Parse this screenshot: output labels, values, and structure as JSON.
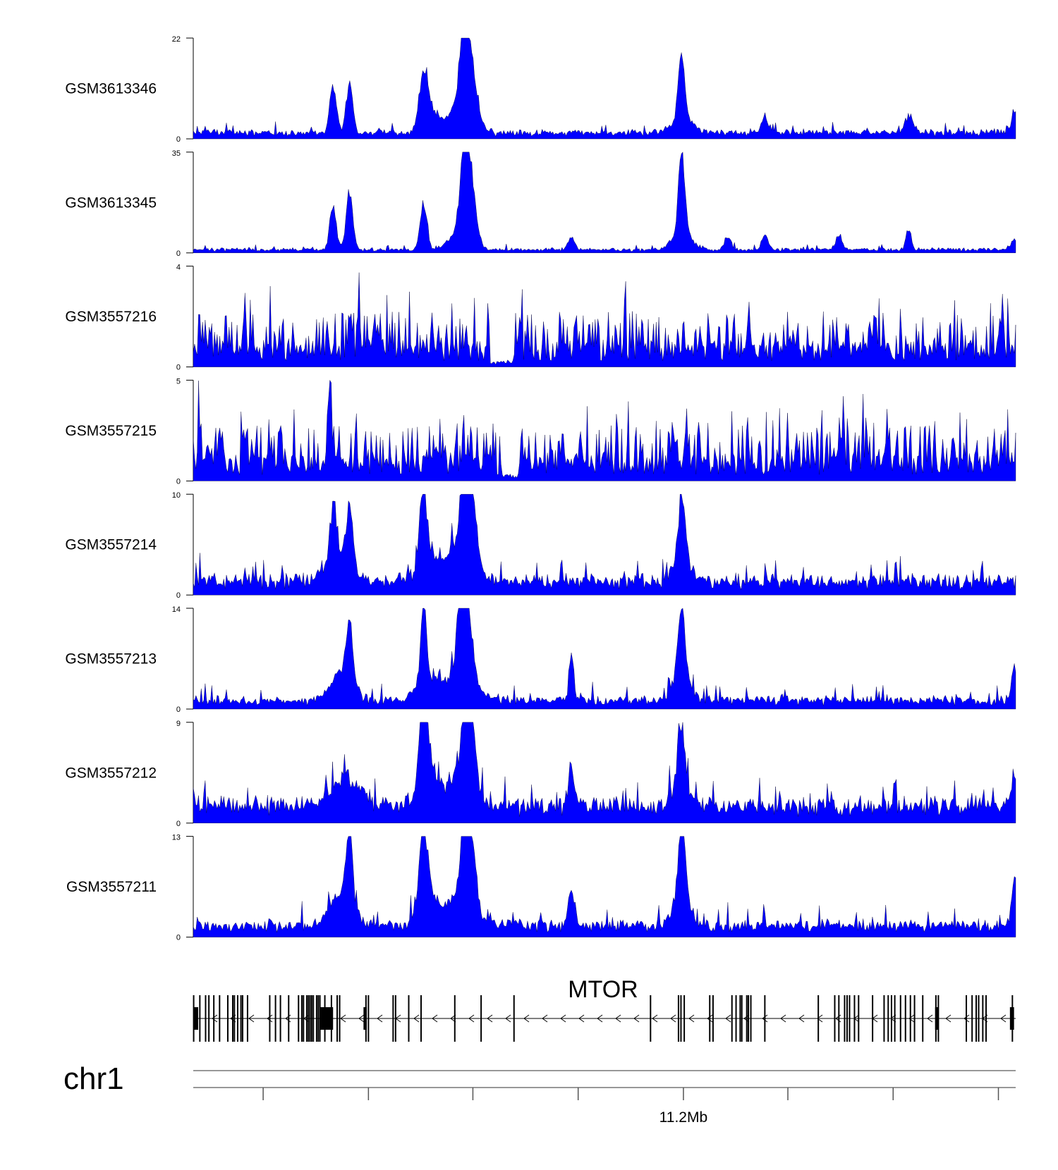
{
  "chart_data": {
    "type": "area",
    "color": "#0000ff",
    "tracks": [
      {
        "name": "GSM3613346",
        "ymax": 22,
        "ymin": 0,
        "baseline": 0.06,
        "noise": 0.05,
        "peaks": [
          [
            0.17,
            0.55,
            0.004
          ],
          [
            0.19,
            0.58,
            0.004
          ],
          [
            0.28,
            0.55,
            0.005
          ],
          [
            0.288,
            0.25,
            0.01
          ],
          [
            0.33,
            1.0,
            0.004
          ],
          [
            0.337,
            0.6,
            0.008
          ],
          [
            0.325,
            0.4,
            0.012
          ],
          [
            0.594,
            0.68,
            0.004
          ],
          [
            0.594,
            0.15,
            0.012
          ],
          [
            0.695,
            0.18,
            0.004
          ],
          [
            0.87,
            0.2,
            0.005
          ],
          [
            0.998,
            0.25,
            0.003
          ]
        ]
      },
      {
        "name": "GSM3613345",
        "ymax": 35,
        "ymin": 0,
        "baseline": 0.03,
        "noise": 0.03,
        "peaks": [
          [
            0.17,
            0.5,
            0.004
          ],
          [
            0.19,
            0.65,
            0.004
          ],
          [
            0.28,
            0.52,
            0.004
          ],
          [
            0.33,
            1.0,
            0.004
          ],
          [
            0.337,
            0.65,
            0.006
          ],
          [
            0.327,
            0.3,
            0.012
          ],
          [
            0.594,
            0.88,
            0.004
          ],
          [
            0.594,
            0.2,
            0.012
          ],
          [
            0.46,
            0.15,
            0.004
          ],
          [
            0.65,
            0.14,
            0.004
          ],
          [
            0.695,
            0.16,
            0.004
          ],
          [
            0.785,
            0.14,
            0.004
          ],
          [
            0.87,
            0.25,
            0.003
          ],
          [
            0.998,
            0.12,
            0.003
          ]
        ]
      },
      {
        "name": "GSM3557216",
        "ymax": 4,
        "ymin": 0,
        "baseline": 0.2,
        "noise": 0.45,
        "spiky": true,
        "gap": [
          0.36,
          0.39
        ],
        "spikeMax": 0.98,
        "peaks": []
      },
      {
        "name": "GSM3557215",
        "ymax": 5,
        "ymin": 0,
        "baseline": 0.2,
        "noise": 0.45,
        "spiky": true,
        "gap": [
          0.375,
          0.395
        ],
        "spikeMax": 1.0,
        "peaks": [
          [
            0.166,
            0.95,
            0.002
          ]
        ]
      },
      {
        "name": "GSM3557214",
        "ymax": 10,
        "ymin": 0,
        "baseline": 0.12,
        "noise": 0.14,
        "peaks": [
          [
            0.17,
            0.62,
            0.004
          ],
          [
            0.19,
            0.6,
            0.004
          ],
          [
            0.18,
            0.3,
            0.015
          ],
          [
            0.28,
            0.8,
            0.004
          ],
          [
            0.285,
            0.35,
            0.012
          ],
          [
            0.33,
            1.0,
            0.004
          ],
          [
            0.337,
            0.8,
            0.006
          ],
          [
            0.325,
            0.5,
            0.014
          ],
          [
            0.594,
            0.68,
            0.004
          ],
          [
            0.594,
            0.3,
            0.01
          ]
        ]
      },
      {
        "name": "GSM3557213",
        "ymax": 14,
        "ymin": 0,
        "baseline": 0.07,
        "noise": 0.1,
        "peaks": [
          [
            0.19,
            0.62,
            0.004
          ],
          [
            0.18,
            0.3,
            0.014
          ],
          [
            0.28,
            1.0,
            0.003
          ],
          [
            0.285,
            0.3,
            0.012
          ],
          [
            0.325,
            0.8,
            0.004
          ],
          [
            0.333,
            0.7,
            0.006
          ],
          [
            0.327,
            0.45,
            0.014
          ],
          [
            0.46,
            0.5,
            0.003
          ],
          [
            0.594,
            0.75,
            0.004
          ],
          [
            0.594,
            0.3,
            0.01
          ],
          [
            0.998,
            0.42,
            0.003
          ]
        ]
      },
      {
        "name": "GSM3557212",
        "ymax": 9,
        "ymin": 0,
        "baseline": 0.15,
        "noise": 0.17,
        "peaks": [
          [
            0.28,
            1.0,
            0.004
          ],
          [
            0.285,
            0.5,
            0.012
          ],
          [
            0.33,
            0.72,
            0.004
          ],
          [
            0.338,
            0.7,
            0.005
          ],
          [
            0.327,
            0.45,
            0.014
          ],
          [
            0.185,
            0.3,
            0.018
          ],
          [
            0.46,
            0.4,
            0.004
          ],
          [
            0.594,
            0.68,
            0.004
          ],
          [
            0.594,
            0.25,
            0.012
          ],
          [
            0.998,
            0.45,
            0.003
          ]
        ]
      },
      {
        "name": "GSM3557211",
        "ymax": 13,
        "ymin": 0,
        "baseline": 0.1,
        "noise": 0.12,
        "peaks": [
          [
            0.19,
            0.87,
            0.004
          ],
          [
            0.18,
            0.35,
            0.014
          ],
          [
            0.28,
            0.9,
            0.004
          ],
          [
            0.285,
            0.4,
            0.012
          ],
          [
            0.33,
            0.85,
            0.004
          ],
          [
            0.338,
            0.68,
            0.005
          ],
          [
            0.327,
            0.45,
            0.014
          ],
          [
            0.46,
            0.4,
            0.004
          ],
          [
            0.594,
            1.0,
            0.004
          ],
          [
            0.594,
            0.3,
            0.01
          ],
          [
            0.998,
            0.58,
            0.003
          ]
        ]
      }
    ],
    "gene": {
      "label": "MTOR",
      "strand": "-",
      "exons": [
        0.0005,
        0.008,
        0.015,
        0.019,
        0.025,
        0.032,
        0.042,
        0.048,
        0.05,
        0.054,
        0.058,
        0.06,
        0.066,
        0.093,
        0.1,
        0.106,
        0.116,
        0.128,
        0.132,
        0.134,
        0.138,
        0.14,
        0.142,
        0.144,
        0.146,
        0.15,
        0.152,
        0.154,
        0.16,
        0.168,
        0.175,
        0.178,
        0.21,
        0.213,
        0.243,
        0.246,
        0.262,
        0.277,
        0.318,
        0.35,
        0.39,
        0.556,
        0.59,
        0.593,
        0.597,
        0.628,
        0.632,
        0.655,
        0.66,
        0.665,
        0.667,
        0.673,
        0.675,
        0.678,
        0.695,
        0.76,
        0.78,
        0.785,
        0.792,
        0.795,
        0.798,
        0.804,
        0.809,
        0.826,
        0.84,
        0.845,
        0.849,
        0.853,
        0.86,
        0.866,
        0.872,
        0.877,
        0.887,
        0.903,
        0.906,
        0.94,
        0.947,
        0.952,
        0.955,
        0.96,
        0.964,
        0.996
      ],
      "blocks": [
        [
          0.0,
          0.006
        ],
        [
          0.154,
          0.17
        ],
        [
          0.207,
          0.211
        ],
        [
          0.902,
          0.906
        ],
        [
          0.993,
          0.998
        ]
      ]
    },
    "axis": {
      "chromosome": "chr1",
      "tick_label": "11.2Mb",
      "ticks": [
        0.085,
        0.213,
        0.34,
        0.468,
        0.596,
        0.723,
        0.851,
        0.979
      ],
      "labeled_tick": 0.596
    }
  }
}
